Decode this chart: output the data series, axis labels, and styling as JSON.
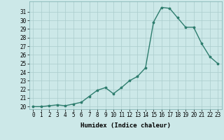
{
  "xlabel": "Humidex (Indice chaleur)",
  "x": [
    0,
    1,
    2,
    3,
    4,
    5,
    6,
    7,
    8,
    9,
    10,
    11,
    12,
    13,
    14,
    15,
    16,
    17,
    18,
    19,
    20,
    21,
    22,
    23
  ],
  "y": [
    20.0,
    20.0,
    20.1,
    20.2,
    20.1,
    20.3,
    20.5,
    21.2,
    21.9,
    22.2,
    21.5,
    22.2,
    23.0,
    23.5,
    24.5,
    29.8,
    31.5,
    31.4,
    30.3,
    29.2,
    29.2,
    27.3,
    25.8,
    25.0
  ],
  "line_color": "#2e7d6e",
  "marker": "*",
  "background_color": "#cce8e8",
  "grid_color": "#aacccc",
  "ylim_min": 19.7,
  "ylim_max": 32.2,
  "xlim_min": -0.5,
  "xlim_max": 23.5,
  "yticks": [
    20,
    21,
    22,
    23,
    24,
    25,
    26,
    27,
    28,
    29,
    30,
    31
  ],
  "xticks": [
    0,
    1,
    2,
    3,
    4,
    5,
    6,
    7,
    8,
    9,
    10,
    11,
    12,
    13,
    14,
    15,
    16,
    17,
    18,
    19,
    20,
    21,
    22,
    23
  ],
  "tick_fontsize": 5.5,
  "xlabel_fontsize": 6.5,
  "linewidth": 1.0,
  "markersize": 2.5
}
